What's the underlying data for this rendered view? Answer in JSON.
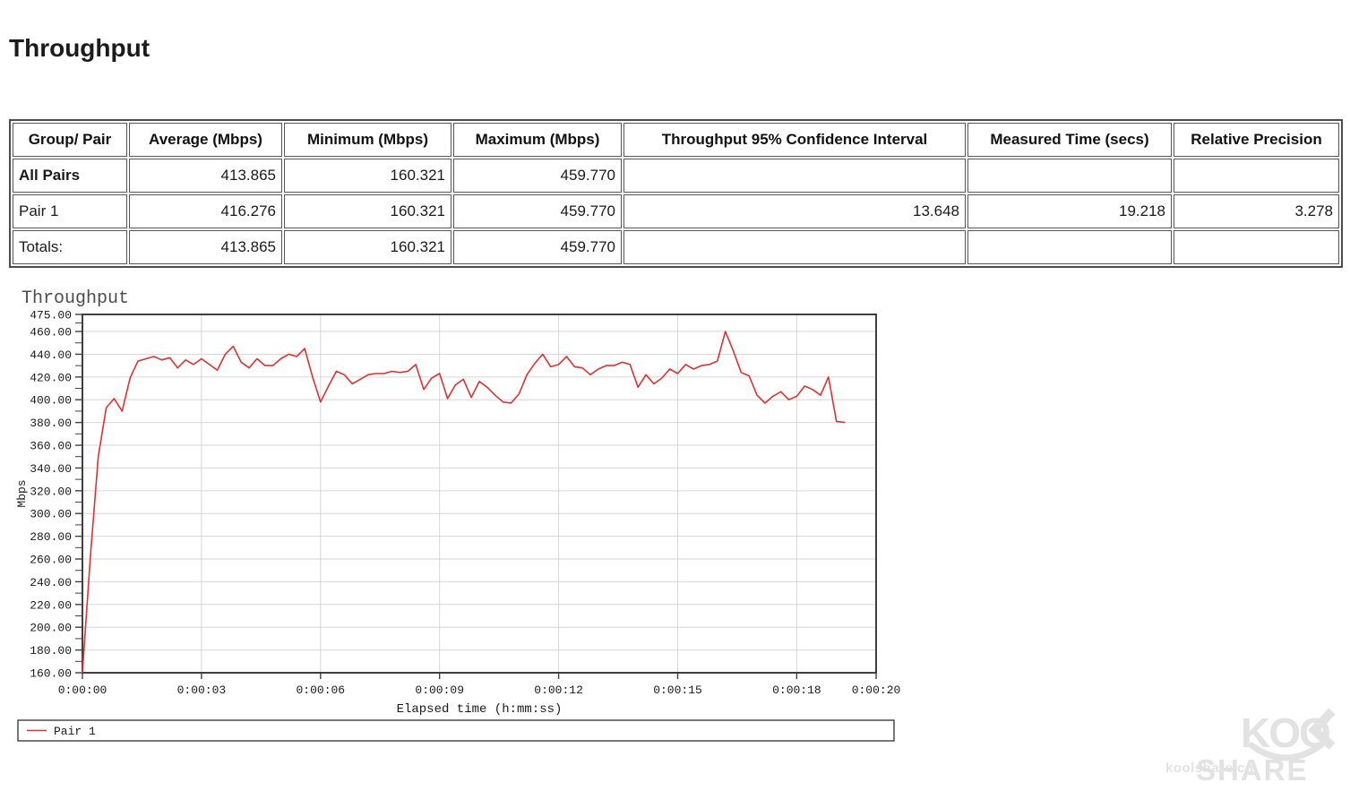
{
  "page": {
    "title": "Throughput"
  },
  "table": {
    "columns": [
      "Group/ Pair",
      "Average (Mbps)",
      "Minimum (Mbps)",
      "Maximum (Mbps)",
      "Throughput 95% Confidence Interval",
      "Measured Time (secs)",
      "Relative Precision"
    ],
    "rows": [
      {
        "label": "All Pairs",
        "emphasis": true,
        "values": [
          "413.865",
          "160.321",
          "459.770",
          "",
          "",
          ""
        ]
      },
      {
        "label": "Pair 1",
        "emphasis": false,
        "values": [
          "416.276",
          "160.321",
          "459.770",
          "13.648",
          "19.218",
          "3.278"
        ]
      },
      {
        "label": "Totals:",
        "emphasis": false,
        "values": [
          "413.865",
          "160.321",
          "459.770",
          "",
          "",
          ""
        ]
      }
    ]
  },
  "chart_data": {
    "type": "line",
    "title": "Throughput",
    "xlabel": "Elapsed time (h:mm:ss)",
    "ylabel": "Mbps",
    "xlim": [
      0,
      20
    ],
    "ylim": [
      160,
      475
    ],
    "grid": true,
    "legend_position": "bottom",
    "y_major_ticks": [
      475,
      460,
      440,
      420,
      400,
      380,
      360,
      340,
      320,
      300,
      280,
      260,
      240,
      220,
      200,
      180,
      160
    ],
    "x_tick_seconds": [
      0,
      3,
      6,
      9,
      12,
      15,
      18,
      20
    ],
    "x_tick_labels": [
      "0:00:00",
      "0:00:03",
      "0:00:06",
      "0:00:09",
      "0:00:12",
      "0:00:15",
      "0:00:18",
      "0:00:20"
    ],
    "x_start": 0,
    "x_step": 0.2,
    "series": [
      {
        "name": "Pair 1",
        "color": "#e03030",
        "values": [
          160.3,
          262,
          350,
          393,
          401,
          390,
          419,
          434,
          436,
          438,
          435,
          437,
          428,
          435,
          431,
          436,
          431,
          426,
          440,
          447,
          433,
          428,
          436,
          430,
          430,
          436,
          440,
          438,
          445,
          420,
          398,
          412,
          425,
          422,
          414,
          418,
          422,
          423,
          423,
          425,
          424,
          425,
          431,
          409,
          419,
          423,
          401,
          413,
          418,
          402,
          416,
          411,
          404,
          398,
          397,
          405,
          422,
          432,
          440,
          429,
          431,
          438,
          429,
          428,
          422,
          427,
          430,
          430,
          433,
          431,
          411,
          422,
          414,
          419,
          427,
          423,
          431,
          427,
          430,
          431,
          434,
          460,
          443,
          424,
          421,
          404,
          397,
          403,
          407,
          400,
          403,
          412,
          409,
          404,
          420,
          381,
          380
        ]
      }
    ]
  },
  "watermark": {
    "site": "koolshare.cn",
    "logo_koo": "KOO",
    "logo_share": "SHARE"
  }
}
